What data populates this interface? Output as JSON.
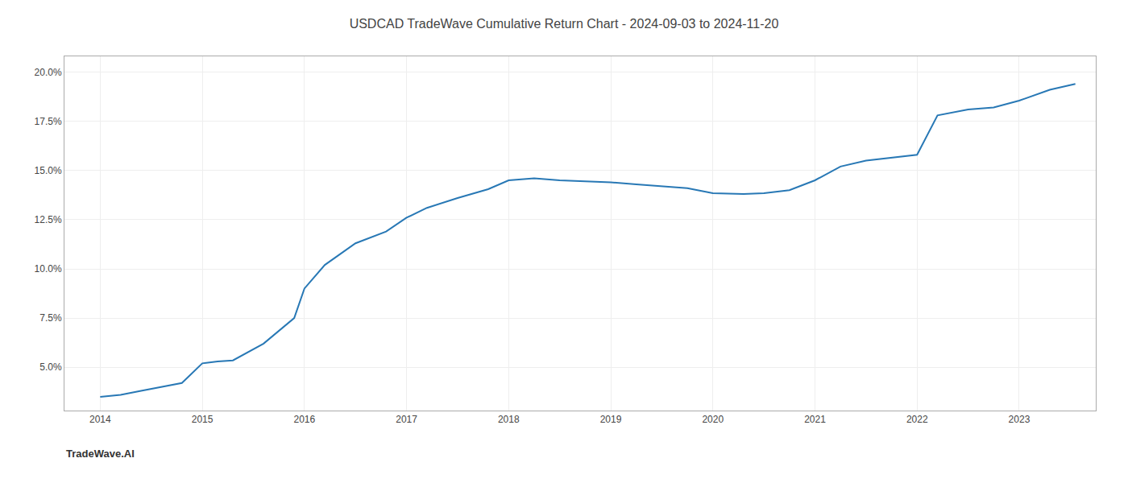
{
  "chart_data": {
    "type": "line",
    "title": "USDCAD TradeWave Cumulative Return Chart - 2024-09-03 to 2024-11-20",
    "annotations": [
      "TradeWave.AI"
    ],
    "color": "#2878b5",
    "x": [
      2014.0,
      2014.2,
      2014.4,
      2014.6,
      2014.8,
      2015.0,
      2015.15,
      2015.3,
      2015.6,
      2015.9,
      2016.0,
      2016.2,
      2016.5,
      2016.8,
      2017.0,
      2017.2,
      2017.5,
      2017.8,
      2018.0,
      2018.25,
      2018.5,
      2018.75,
      2019.0,
      2019.25,
      2019.5,
      2019.75,
      2020.0,
      2020.3,
      2020.5,
      2020.75,
      2021.0,
      2021.25,
      2021.5,
      2021.75,
      2022.0,
      2022.2,
      2022.5,
      2022.75,
      2023.0,
      2023.3,
      2023.55
    ],
    "values": [
      3.5,
      3.6,
      3.8,
      4.0,
      4.2,
      5.2,
      5.3,
      5.35,
      6.2,
      7.5,
      9.0,
      10.2,
      11.3,
      11.9,
      12.6,
      13.1,
      13.6,
      14.05,
      14.5,
      14.6,
      14.5,
      14.45,
      14.4,
      14.3,
      14.2,
      14.1,
      13.85,
      13.8,
      13.85,
      14.0,
      14.5,
      15.2,
      15.5,
      15.65,
      15.8,
      17.8,
      18.1,
      18.2,
      18.55,
      19.1,
      19.4
    ],
    "xlim": [
      2013.65,
      2023.75
    ],
    "ylim": [
      2.8,
      20.8
    ],
    "xticks": [
      2014,
      2015,
      2016,
      2017,
      2018,
      2019,
      2020,
      2021,
      2022,
      2023
    ],
    "yticks": [
      {
        "value": 5.0,
        "label": "5.0%"
      },
      {
        "value": 7.5,
        "label": "7.5%"
      },
      {
        "value": 10.0,
        "label": "10.0%"
      },
      {
        "value": 12.5,
        "label": "12.5%"
      },
      {
        "value": 15.0,
        "label": "15.0%"
      },
      {
        "value": 17.5,
        "label": "17.5%"
      },
      {
        "value": 20.0,
        "label": "20.0%"
      }
    ],
    "grid": true
  }
}
